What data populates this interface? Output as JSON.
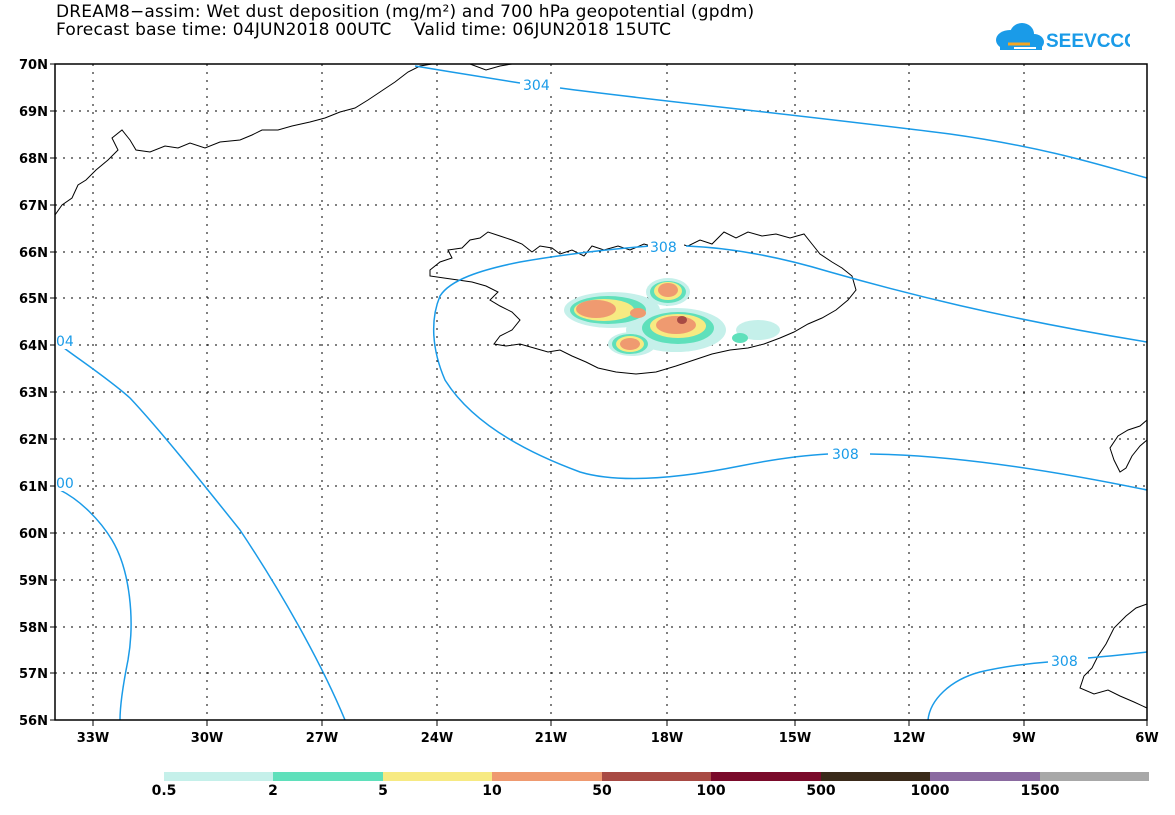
{
  "title_line1": "DREAM8−assim: Wet dust deposition (mg/m²) and 700 hPa geopotential (gpdm)",
  "title_line2": "Forecast base time: 04JUN2018 00UTC    Valid time: 06JUN2018 15UTC",
  "logo_text": "SEEVCCC",
  "lat_labels": [
    "70N",
    "69N",
    "68N",
    "67N",
    "66N",
    "65N",
    "64N",
    "63N",
    "62N",
    "61N",
    "60N",
    "59N",
    "58N",
    "57N",
    "56N"
  ],
  "lon_labels": [
    "33W",
    "30W",
    "27W",
    "24W",
    "21W",
    "18W",
    "15W",
    "12W",
    "9W",
    "6W"
  ],
  "contour_labels": {
    "c304_top": "304",
    "c304_left": "04",
    "c300_left": "00",
    "c308_iceland": "308",
    "c308_mid": "308",
    "c308_se": "308"
  },
  "legend": {
    "labels": [
      "0.5",
      "2",
      "5",
      "10",
      "50",
      "100",
      "500",
      "1000",
      "1500"
    ],
    "colors": [
      "#c5f0ea",
      "#5fe0bb",
      "#f7ea82",
      "#ef9a70",
      "#a84a44",
      "#7a0a2a",
      "#3a2a1a",
      "#8a6aa0",
      "#a8a8a8"
    ]
  },
  "colors": {
    "contour": "#1a9be8",
    "coast": "#000000",
    "dep_light": "#c5f0ea",
    "dep_green": "#5fe0bb",
    "dep_yellow": "#f7ea82",
    "dep_orange": "#ef9a70",
    "dep_brown": "#a84a44"
  }
}
